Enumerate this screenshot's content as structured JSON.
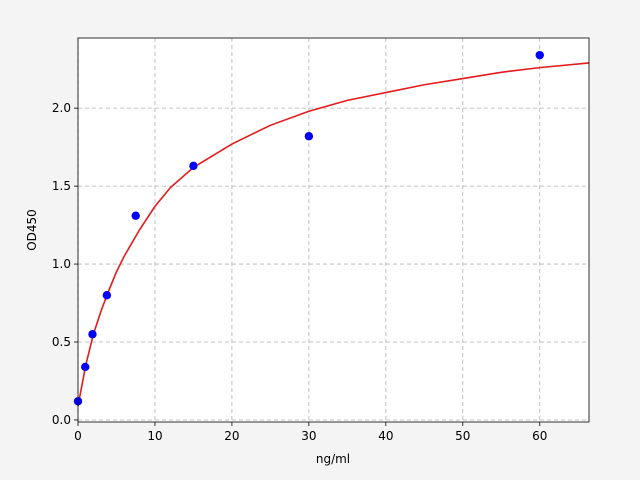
{
  "chart_data": {
    "type": "scatter",
    "x_label": "ng/ml",
    "y_label": "OD450",
    "xlim": [
      0,
      66.4
    ],
    "ylim": [
      -0.013,
      2.45
    ],
    "xticks": [
      0,
      10,
      20,
      30,
      40,
      50,
      60
    ],
    "yticks": [
      {
        "value": 0,
        "label": "0.0"
      },
      0.5,
      {
        "value": 1,
        "label": "1.0"
      },
      1.5,
      {
        "value": 2,
        "label": "2.0"
      }
    ],
    "grid": true,
    "series": [
      {
        "type": "line",
        "color": "#e41a1c",
        "x": [
          0,
          1,
          2,
          3,
          4,
          5,
          6,
          8,
          10,
          12,
          15,
          20,
          25,
          30,
          35,
          40,
          45,
          50,
          55,
          60,
          66.4
        ],
        "values": [
          0.09,
          0.35,
          0.55,
          0.7,
          0.83,
          0.95,
          1.05,
          1.22,
          1.37,
          1.49,
          1.62,
          1.77,
          1.89,
          1.98,
          2.05,
          2.1,
          2.15,
          2.19,
          2.23,
          2.26,
          2.29
        ]
      },
      {
        "type": "scatter",
        "color": "#0000ff",
        "x": [
          0,
          0.94,
          1.88,
          3.75,
          7.5,
          15,
          30,
          60
        ],
        "values": [
          0.12,
          0.34,
          0.55,
          0.8,
          1.31,
          1.63,
          1.82,
          2.34
        ]
      }
    ]
  }
}
